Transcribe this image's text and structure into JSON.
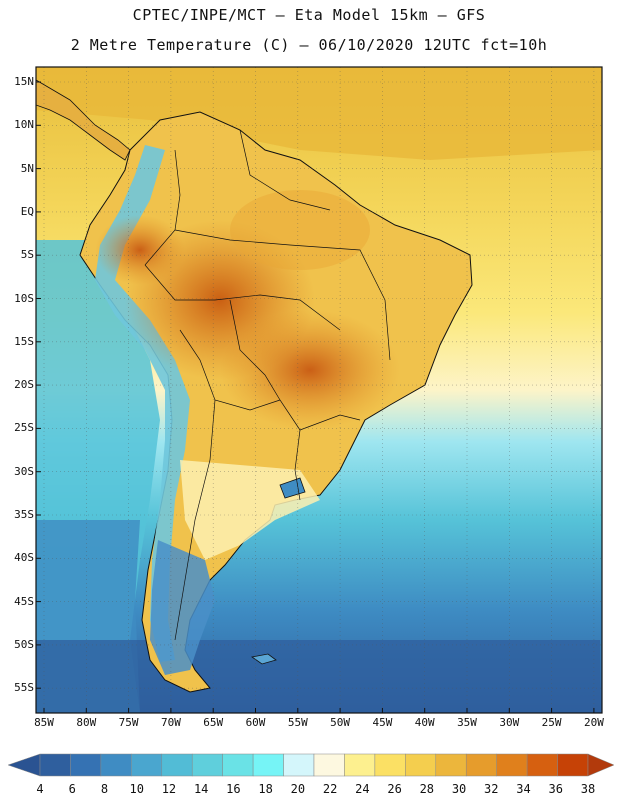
{
  "title_line1": "CPTEC/INPE/MCT –  Eta Model 15km – GFS",
  "title_line2": "2 Metre Temperature (C) – 06/10/2020 12UTC fct=10h",
  "lat_labels": [
    "15N",
    "10N",
    "5N",
    "EQ",
    "5S",
    "10S",
    "15S",
    "20S",
    "25S",
    "30S",
    "35S",
    "40S",
    "45S",
    "50S",
    "55S"
  ],
  "lon_labels": [
    "85W",
    "80W",
    "75W",
    "70W",
    "65W",
    "60W",
    "55W",
    "50W",
    "45W",
    "40W",
    "35W",
    "30W",
    "25W",
    "20W"
  ],
  "colorbar": {
    "labels": [
      "4",
      "6",
      "8",
      "10",
      "12",
      "14",
      "16",
      "18",
      "20",
      "22",
      "24",
      "26",
      "28",
      "30",
      "32",
      "34",
      "36",
      "38"
    ],
    "colors": [
      "#2f5f9e",
      "#3572b3",
      "#3f8cc3",
      "#4aa6cf",
      "#52bcd6",
      "#5fcfdc",
      "#6ae2e6",
      "#76f4f6",
      "#d4f6fb",
      "#fdf8e0",
      "#fdf08f",
      "#fbe064",
      "#f4ce4e",
      "#ecb63c",
      "#e69c2c",
      "#e0801c",
      "#d66010",
      "#c64206"
    ],
    "under_color": "#2a5392",
    "over_color": "#b23a0c"
  }
}
